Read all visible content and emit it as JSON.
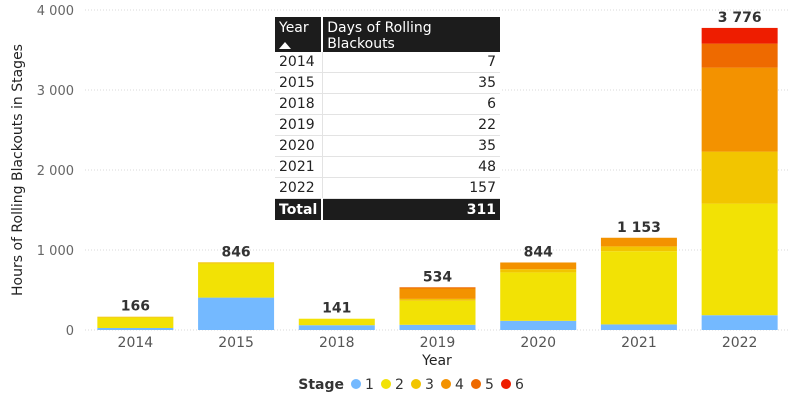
{
  "chart_data": {
    "type": "bar",
    "stacked": true,
    "categories": [
      "2014",
      "2015",
      "2018",
      "2019",
      "2020",
      "2021",
      "2022"
    ],
    "series": [
      {
        "name": "1",
        "color": "#74b9ff",
        "values": [
          25,
          405,
          60,
          65,
          115,
          70,
          185
        ]
      },
      {
        "name": "2",
        "color": "#f2e205",
        "values": [
          130,
          425,
          81,
          300,
          605,
          915,
          1395
        ]
      },
      {
        "name": "3",
        "color": "#f2c500",
        "values": [
          11,
          16,
          0,
          24,
          40,
          60,
          650
        ]
      },
      {
        "name": "4",
        "color": "#f39200",
        "values": [
          0,
          0,
          0,
          130,
          84,
          108,
          1050
        ]
      },
      {
        "name": "5",
        "color": "#ee6a00",
        "values": [
          0,
          0,
          0,
          15,
          0,
          0,
          300
        ]
      },
      {
        "name": "6",
        "color": "#ee1d00",
        "values": [
          0,
          0,
          0,
          0,
          0,
          0,
          196
        ]
      }
    ],
    "totals": [
      "166",
      "846",
      "141",
      "534",
      "844",
      "1 153",
      "3 776"
    ],
    "y_ticks": [
      "0",
      "1 000",
      "2 000",
      "3 000",
      "4 000"
    ],
    "ylim": [
      0,
      4000
    ],
    "xlabel": "Year",
    "ylabel": "Hours of Rolling Blackouts in Stages",
    "legend": {
      "title": "Stage",
      "position": "bottom"
    },
    "grid": true
  },
  "table": {
    "headers": [
      "Year",
      "Days of Rolling Blackouts"
    ],
    "rows": [
      {
        "year": "2014",
        "days": "7"
      },
      {
        "year": "2015",
        "days": "35"
      },
      {
        "year": "2018",
        "days": "6"
      },
      {
        "year": "2019",
        "days": "22"
      },
      {
        "year": "2020",
        "days": "35"
      },
      {
        "year": "2021",
        "days": "48"
      },
      {
        "year": "2022",
        "days": "157"
      }
    ],
    "total_label": "Total",
    "total_value": "311"
  }
}
